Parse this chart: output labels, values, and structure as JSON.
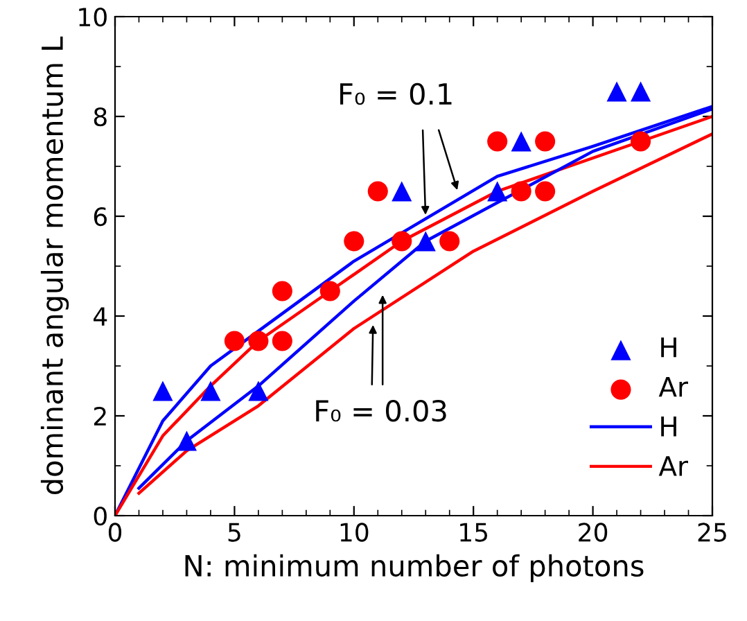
{
  "chart_data": {
    "type": "scatter",
    "xlabel": "N: minimum number of photons",
    "ylabel": "dominant angular momentum L",
    "xlim": [
      0,
      25
    ],
    "ylim": [
      0,
      10
    ],
    "xticks": [
      0,
      5,
      10,
      15,
      20,
      25
    ],
    "yticks": [
      0,
      2,
      4,
      6,
      8,
      10
    ],
    "grid": false,
    "legend": "bottom right",
    "series": [
      {
        "name": "H",
        "marker": "triangle",
        "color": "#0000ff",
        "x": [
          2,
          3,
          4,
          6,
          12,
          13,
          16,
          17,
          21,
          22
        ],
        "values": [
          2.5,
          1.5,
          2.5,
          2.5,
          6.5,
          5.5,
          6.5,
          7.5,
          8.5,
          8.5
        ]
      },
      {
        "name": "Ar",
        "marker": "circle",
        "color": "#ff0000",
        "x": [
          5,
          6,
          7,
          7,
          9,
          10,
          11,
          12,
          14,
          16,
          17,
          18,
          18,
          22
        ],
        "values": [
          3.5,
          3.5,
          3.5,
          4.5,
          4.5,
          5.5,
          6.5,
          5.5,
          5.5,
          7.5,
          6.5,
          7.5,
          6.5,
          7.5
        ]
      },
      {
        "name": "H",
        "type": "line",
        "marker": "none",
        "color": "#0000ff",
        "x": [
          0,
          2,
          4,
          6,
          10,
          13,
          16,
          20,
          25
        ],
        "values": [
          0,
          1.9,
          3.0,
          3.7,
          5.1,
          5.95,
          6.8,
          7.4,
          8.2
        ]
      },
      {
        "name": "Ar",
        "type": "line",
        "marker": "none",
        "color": "#ff0000",
        "x": [
          0,
          2,
          4,
          6,
          9,
          12,
          16,
          22,
          25
        ],
        "values": [
          0,
          1.6,
          2.6,
          3.5,
          4.5,
          5.5,
          6.5,
          7.5,
          8.0
        ]
      },
      {
        "type": "line",
        "marker": "none",
        "color": "#0000ff",
        "x": [
          1,
          3,
          6,
          10,
          13,
          20,
          25
        ],
        "values": [
          0.55,
          1.5,
          2.6,
          4.3,
          5.5,
          7.3,
          8.15
        ]
      },
      {
        "type": "line",
        "marker": "none",
        "color": "#ff0000",
        "x": [
          1,
          3,
          6,
          10,
          15,
          20,
          25
        ],
        "values": [
          0.45,
          1.3,
          2.2,
          3.75,
          5.3,
          6.5,
          7.65
        ]
      }
    ],
    "annotations": [
      {
        "text": "F₀ = 0.1",
        "x": 13,
        "y": 5.95
      },
      {
        "text": "F₀ = 0.03",
        "x": 10.8,
        "y": 3.9
      }
    ]
  }
}
